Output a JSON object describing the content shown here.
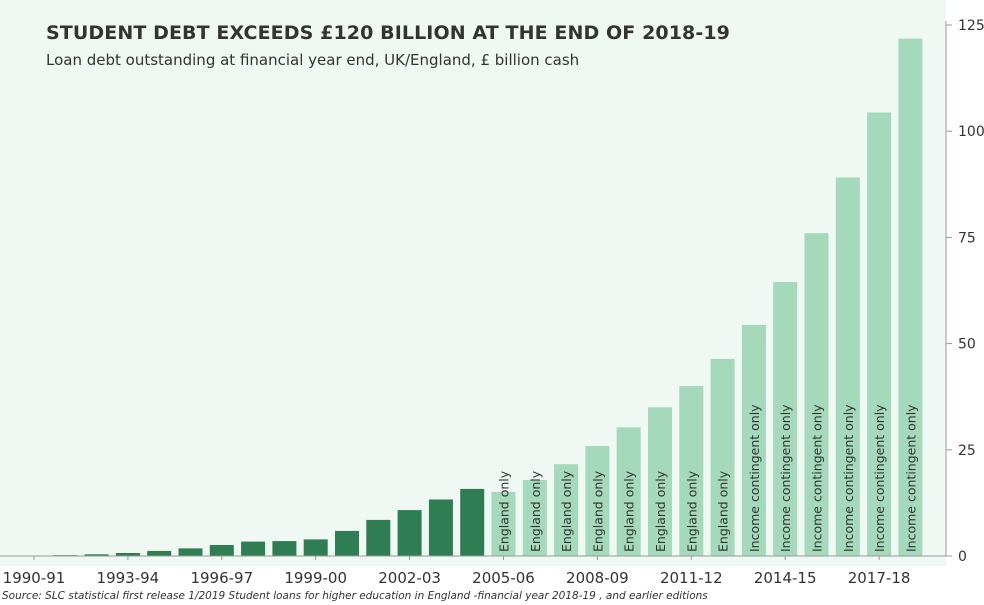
{
  "title": "STUDENT DEBT EXCEEDS £120 BILLION AT THE END OF 2018-19",
  "subtitle": "Loan debt outstanding  at financial year end, UK/England,  £ billion cash",
  "source": "Source: SLC statistical first release 1/2019 Student loans for higher education in England -financial year 2018-19 , and earlier editions",
  "colors": {
    "background": "#eff8f2",
    "uk_bar": "#2e7d53",
    "england_bar": "#a4d9bb",
    "text": "#333333"
  },
  "chart_data": {
    "type": "bar",
    "title": "STUDENT DEBT EXCEEDS £120 BILLION AT THE END OF 2018-19",
    "subtitle": "Loan debt outstanding  at financial year end, UK/England,  £ billion cash",
    "xlabel": "",
    "ylabel": "",
    "ylim": [
      0,
      125
    ],
    "yticks": [
      0,
      25,
      50,
      75,
      100,
      125
    ],
    "y_axis_side": "right",
    "grid": false,
    "categories": [
      "1990-91",
      "1991-92",
      "1992-93",
      "1993-94",
      "1994-95",
      "1995-96",
      "1996-97",
      "1997-98",
      "1998-99",
      "1999-00",
      "2000-01",
      "2001-02",
      "2002-03",
      "2003-04",
      "2004-05",
      "2005-06",
      "2006-07",
      "2007-08",
      "2008-09",
      "2009-10",
      "2010-11",
      "2011-12",
      "2012-13",
      "2013-14",
      "2014-15",
      "2015-16",
      "2016-17",
      "2017-18",
      "2018-19"
    ],
    "x_tick_labels": [
      "1990-91",
      "1993-94",
      "1996-97",
      "1999-00",
      "2002-03",
      "2005-06",
      "2008-09",
      "2011-12",
      "2014-15",
      "2017-18"
    ],
    "values": [
      0.1,
      0.2,
      0.4,
      0.7,
      1.2,
      1.8,
      2.6,
      3.4,
      3.5,
      3.9,
      5.9,
      8.5,
      10.8,
      13.3,
      15.8,
      15.1,
      17.9,
      21.6,
      25.9,
      30.3,
      35.0,
      40.0,
      46.4,
      54.4,
      64.5,
      76.0,
      89.1,
      104.4,
      121.8
    ],
    "segments": [
      {
        "from": "1990-91",
        "to": "2004-05",
        "region": "UK",
        "color": "#2e7d53"
      },
      {
        "from": "2005-06",
        "to": "2018-19",
        "region": "England",
        "color": "#a4d9bb"
      }
    ],
    "bar_labels": [
      "",
      "",
      "",
      "",
      "",
      "",
      "",
      "",
      "",
      "",
      "",
      "",
      "",
      "",
      "",
      "England only",
      "England only",
      "England only",
      "England only",
      "England only",
      "England only",
      "England only",
      "England only",
      "Income contingent only",
      "Income contingent only",
      "Income contingent only",
      "Income contingent only",
      "Income contingent only",
      "Income contingent only"
    ]
  }
}
